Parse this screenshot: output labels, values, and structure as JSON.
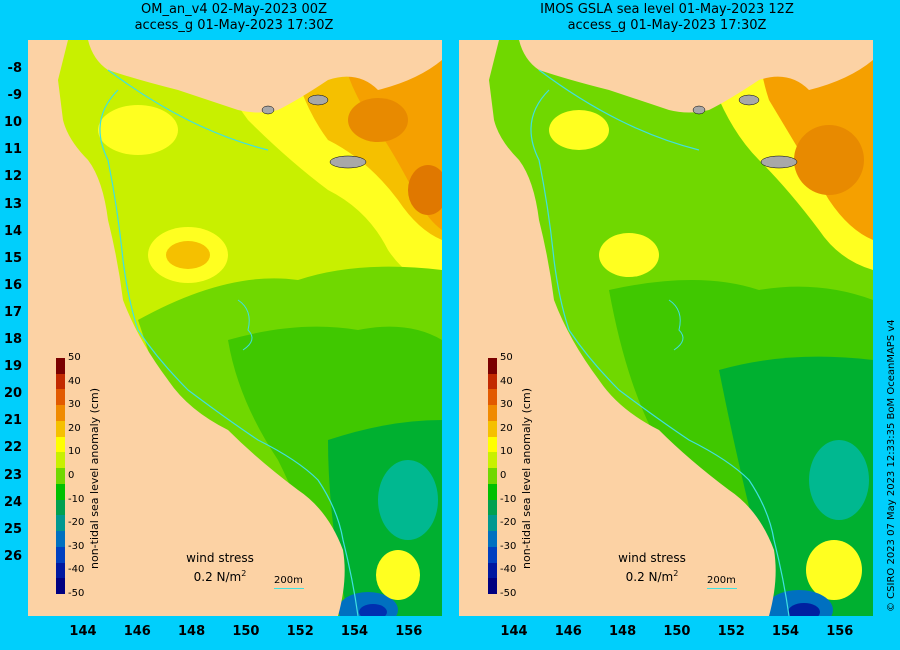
{
  "left_panel": {
    "title_line1": "OM_an_v4  02-May-2023 00Z",
    "title_line2": "access_g 01-May-2023 17:30Z"
  },
  "right_panel": {
    "title_line1": "IMOS GSLA sea level  01-May-2023 12Z",
    "title_line2": "access_g 01-May-2023 17:30Z"
  },
  "y_axis_labels": [
    "-8",
    "-9",
    "10",
    "11",
    "12",
    "13",
    "14",
    "15",
    "16",
    "17",
    "18",
    "19",
    "20",
    "21",
    "22",
    "23",
    "24",
    "25",
    "26"
  ],
  "x_axis_labels": [
    "144",
    "146",
    "148",
    "150",
    "152",
    "154",
    "156"
  ],
  "colorbar": {
    "title": "non-tidal sea level anomaly (cm)",
    "ticks": [
      "50",
      "40",
      "30",
      "20",
      "10",
      "0",
      "-10",
      "-20",
      "-30",
      "-40",
      "-50"
    ],
    "colors": [
      "#7a0000",
      "#c22a00",
      "#e25a00",
      "#f08a00",
      "#f5c000",
      "#ffff00",
      "#c8f000",
      "#70d800",
      "#00c000",
      "#00a050",
      "#009890",
      "#0070c0",
      "#0040c0",
      "#0018a0",
      "#000080"
    ]
  },
  "wind_label_line1": "wind stress",
  "wind_label_line2": "0.2 N/m",
  "wind_label_sup": "2",
  "scale_label": "200m",
  "credit": "© CSIRO 2023   07 May 2023 12:33:35 BoM OceanMAPS v4",
  "colors": {
    "background": "#00cffc",
    "land": "#fcd2a4",
    "ocean_yellow": "#ffff20",
    "ocean_lime": "#c8f000",
    "ocean_green": "#40c800",
    "ocean_dark_green": "#00b030",
    "ocean_orange": "#f5a000",
    "ocean_teal": "#00b890",
    "ocean_blue": "#0040d0",
    "isobath": "#40e0e0"
  }
}
